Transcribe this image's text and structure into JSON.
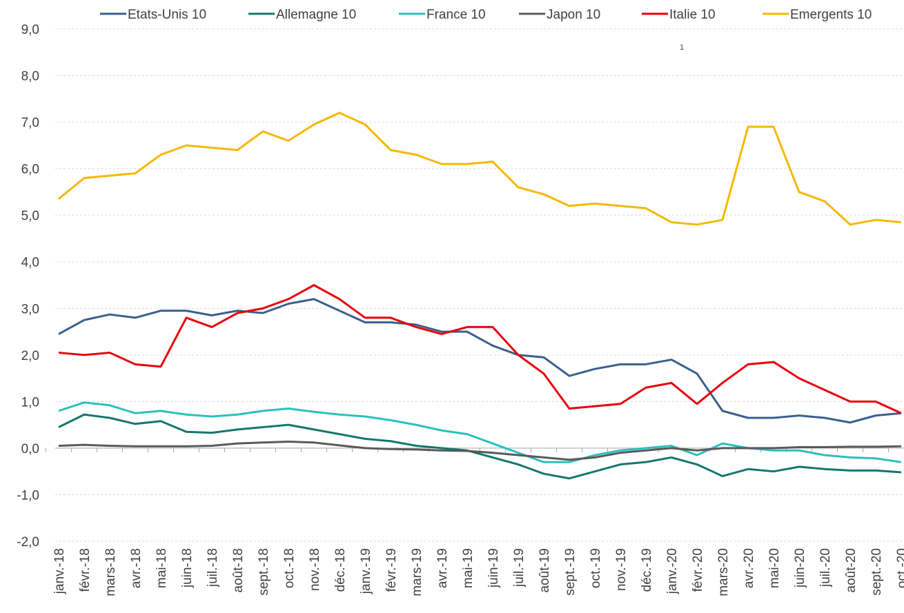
{
  "chart_data": {
    "type": "line",
    "annotation": "1",
    "categories": [
      "janv.-18",
      "févr.-18",
      "mars-18",
      "avr.-18",
      "mai-18",
      "juin-18",
      "juil.-18",
      "août-18",
      "sept.-18",
      "oct.-18",
      "nov.-18",
      "déc.-18",
      "janv.-19",
      "févr.-19",
      "mars-19",
      "avr.-19",
      "mai-19",
      "juin-19",
      "juil.-19",
      "août-19",
      "sept.-19",
      "oct.-19",
      "nov.-19",
      "déc.-19",
      "janv.-20",
      "févr.-20",
      "mars-20",
      "avr.-20",
      "mai-20",
      "juin-20",
      "juil.-20",
      "août-20",
      "sept.-20",
      "oct.-20"
    ],
    "series": [
      {
        "name": "Etats-Unis 10",
        "color": "#3a5f8c",
        "values": [
          2.45,
          2.75,
          2.87,
          2.8,
          2.95,
          2.95,
          2.85,
          2.95,
          2.9,
          3.1,
          3.2,
          2.95,
          2.7,
          2.7,
          2.65,
          2.5,
          2.5,
          2.2,
          2.0,
          1.95,
          1.55,
          1.7,
          1.8,
          1.8,
          1.9,
          1.6,
          0.8,
          0.65,
          0.65,
          0.7,
          0.65,
          0.55,
          0.7,
          0.75
        ]
      },
      {
        "name": "Allemagne 10",
        "color": "#13776b",
        "values": [
          0.45,
          0.72,
          0.65,
          0.52,
          0.58,
          0.35,
          0.33,
          0.4,
          0.45,
          0.5,
          0.4,
          0.3,
          0.2,
          0.15,
          0.05,
          0.0,
          -0.05,
          -0.2,
          -0.35,
          -0.55,
          -0.65,
          -0.5,
          -0.35,
          -0.3,
          -0.2,
          -0.35,
          -0.6,
          -0.45,
          -0.5,
          -0.4,
          -0.45,
          -0.48,
          -0.48,
          -0.52
        ]
      },
      {
        "name": "France 10",
        "color": "#2bbfbf",
        "values": [
          0.8,
          0.98,
          0.92,
          0.75,
          0.8,
          0.72,
          0.68,
          0.72,
          0.8,
          0.85,
          0.78,
          0.72,
          0.68,
          0.6,
          0.5,
          0.38,
          0.3,
          0.1,
          -0.1,
          -0.3,
          -0.3,
          -0.15,
          -0.05,
          0.0,
          0.05,
          -0.15,
          0.1,
          0.0,
          -0.05,
          -0.05,
          -0.15,
          -0.2,
          -0.22,
          -0.3
        ]
      },
      {
        "name": "Japon 10",
        "color": "#595959",
        "values": [
          0.05,
          0.07,
          0.05,
          0.04,
          0.04,
          0.04,
          0.05,
          0.1,
          0.12,
          0.14,
          0.12,
          0.06,
          0.0,
          -0.02,
          -0.03,
          -0.05,
          -0.06,
          -0.1,
          -0.15,
          -0.2,
          -0.25,
          -0.2,
          -0.1,
          -0.05,
          0.0,
          -0.05,
          0.0,
          0.0,
          0.0,
          0.02,
          0.02,
          0.03,
          0.03,
          0.04
        ]
      },
      {
        "name": "Italie 10",
        "color": "#e8000b",
        "values": [
          2.05,
          2.0,
          2.05,
          1.8,
          1.75,
          2.8,
          2.6,
          2.9,
          3.0,
          3.2,
          3.5,
          3.2,
          2.8,
          2.8,
          2.6,
          2.45,
          2.6,
          2.6,
          2.0,
          1.6,
          0.85,
          0.9,
          0.95,
          1.3,
          1.4,
          0.95,
          1.4,
          1.8,
          1.85,
          1.5,
          1.25,
          1.0,
          1.0,
          0.75
        ]
      },
      {
        "name": "Emergents 10",
        "color": "#f5b800",
        "values": [
          5.35,
          5.8,
          5.85,
          5.9,
          6.3,
          6.5,
          6.45,
          6.4,
          6.8,
          6.6,
          6.95,
          7.2,
          6.95,
          6.4,
          6.3,
          6.1,
          6.1,
          6.15,
          5.6,
          5.45,
          5.2,
          5.25,
          5.2,
          5.15,
          4.85,
          4.8,
          4.9,
          6.9,
          6.9,
          5.5,
          5.3,
          4.8,
          4.9,
          4.85
        ]
      }
    ],
    "ylim": [
      -2,
      9
    ],
    "yticks": [
      {
        "value": -2,
        "label": "-2,0"
      },
      {
        "value": -1,
        "label": "-1,0"
      },
      {
        "value": 0,
        "label": "0,0"
      },
      {
        "value": 1,
        "label": "1,0"
      },
      {
        "value": 2,
        "label": "2,0"
      },
      {
        "value": 3,
        "label": "3,0"
      },
      {
        "value": 4,
        "label": "4,0"
      },
      {
        "value": 5,
        "label": "5,0"
      },
      {
        "value": 6,
        "label": "6,0"
      },
      {
        "value": 7,
        "label": "7,0"
      },
      {
        "value": 8,
        "label": "8,0"
      },
      {
        "value": 9,
        "label": "9,0"
      }
    ],
    "grid": true,
    "legend": "top"
  }
}
